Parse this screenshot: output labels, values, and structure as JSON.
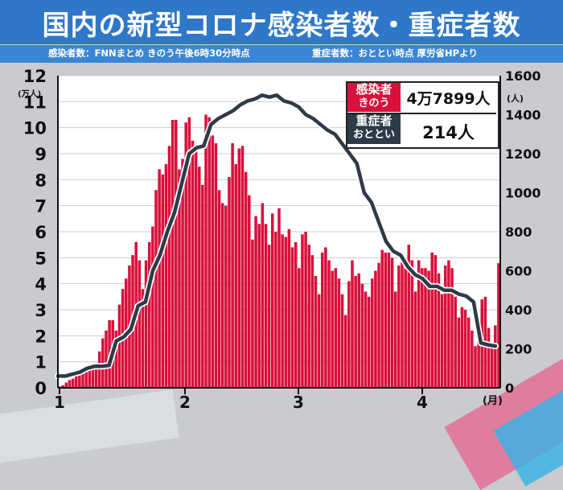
{
  "header": {
    "title": "国内の新型コロナ感染者数・重症者数",
    "source_left": "感染者数：FNNまとめ きのう午後6時30分時点",
    "source_right": "重症者数：おととい時点 厚労省HPより"
  },
  "legend": {
    "infections_label_1": "感染者",
    "infections_label_2": "きのう",
    "infections_value": "4万7899人",
    "severe_label_1": "重症者",
    "severe_label_2": "おととい",
    "severe_value": "214人"
  },
  "colors": {
    "bars": "#d8103b",
    "line": "#2d3a48",
    "title_bg": "#2f77c8",
    "plot_bg": "#ffffff"
  },
  "chart_data": {
    "type": "bar",
    "title": "国内の新型コロナ感染者数・重症者数",
    "left_axis_unit": "(万人)",
    "right_axis_unit": "(人)",
    "x_unit": "(月)",
    "x_ticks": [
      "1",
      "2",
      "3",
      "4"
    ],
    "left_ticks": [
      "0",
      "1",
      "2",
      "3",
      "4",
      "5",
      "6",
      "7",
      "8",
      "9",
      "10",
      "11",
      "12"
    ],
    "right_ticks": [
      "0",
      "200",
      "400",
      "600",
      "800",
      "1000",
      "1200",
      "1400",
      "1600"
    ],
    "ylim_left": [
      0,
      12
    ],
    "ylim_right": [
      0,
      1600
    ],
    "grid": true,
    "series": [
      {
        "name": "感染者",
        "axis": "left",
        "values": [
          0.05,
          0.1,
          0.2,
          0.3,
          0.35,
          0.45,
          0.55,
          0.65,
          0.75,
          0.85,
          0.9,
          0.95,
          1.4,
          1.9,
          2.2,
          2.6,
          2.6,
          2.2,
          3.2,
          3.8,
          4.2,
          4.7,
          5.1,
          5.6,
          4.9,
          3.8,
          4.9,
          5.6,
          6.2,
          7.6,
          8.4,
          8.2,
          8.6,
          9.3,
          10.3,
          10.3,
          8.4,
          8.8,
          10.2,
          10.4,
          9.5,
          9.3,
          8.5,
          7.8,
          10.5,
          10.4,
          9.7,
          9.4,
          7.6,
          7.1,
          7.0,
          8.1,
          9.4,
          8.6,
          9.2,
          9.3,
          8.3,
          7.4,
          5.7,
          6.6,
          6.3,
          7.1,
          6.3,
          5.5,
          6.7,
          6.0,
          6.9,
          5.9,
          5.8,
          6.1,
          5.4,
          5.6,
          4.6,
          5.9,
          6.0,
          5.5,
          5.1,
          4.3,
          3.6,
          5.2,
          5.4,
          4.9,
          4.5,
          4.6,
          4.2,
          3.6,
          2.8,
          4.1,
          4.9,
          4.3,
          4.4,
          4.0,
          3.7,
          3.5,
          4.2,
          4.5,
          4.8,
          5.3,
          5.2,
          5.2,
          5.0,
          3.7,
          4.7,
          5.0,
          4.6,
          5.5,
          4.9,
          3.7,
          4.9,
          4.6,
          4.6,
          4.5,
          5.2,
          5.1,
          4.4,
          3.6,
          4.7,
          4.9,
          4.6,
          3.5,
          2.7,
          3.1,
          3.0,
          2.7,
          2.2,
          1.6,
          2.5,
          3.4,
          3.5,
          2.3,
          1.7,
          2.4,
          4.79
        ]
      },
      {
        "name": "重症者",
        "axis": "right",
        "values": [
          60,
          60,
          70,
          80,
          100,
          110,
          110,
          115,
          240,
          260,
          300,
          420,
          440,
          600,
          680,
          800,
          900,
          1050,
          1200,
          1230,
          1240,
          1350,
          1380,
          1400,
          1420,
          1450,
          1470,
          1480,
          1500,
          1490,
          1500,
          1470,
          1460,
          1440,
          1400,
          1380,
          1350,
          1320,
          1300,
          1250,
          1200,
          1150,
          1000,
          950,
          850,
          750,
          700,
          680,
          620,
          580,
          560,
          520,
          520,
          500,
          500,
          480,
          470,
          440,
          230,
          220,
          214
        ]
      }
    ]
  }
}
